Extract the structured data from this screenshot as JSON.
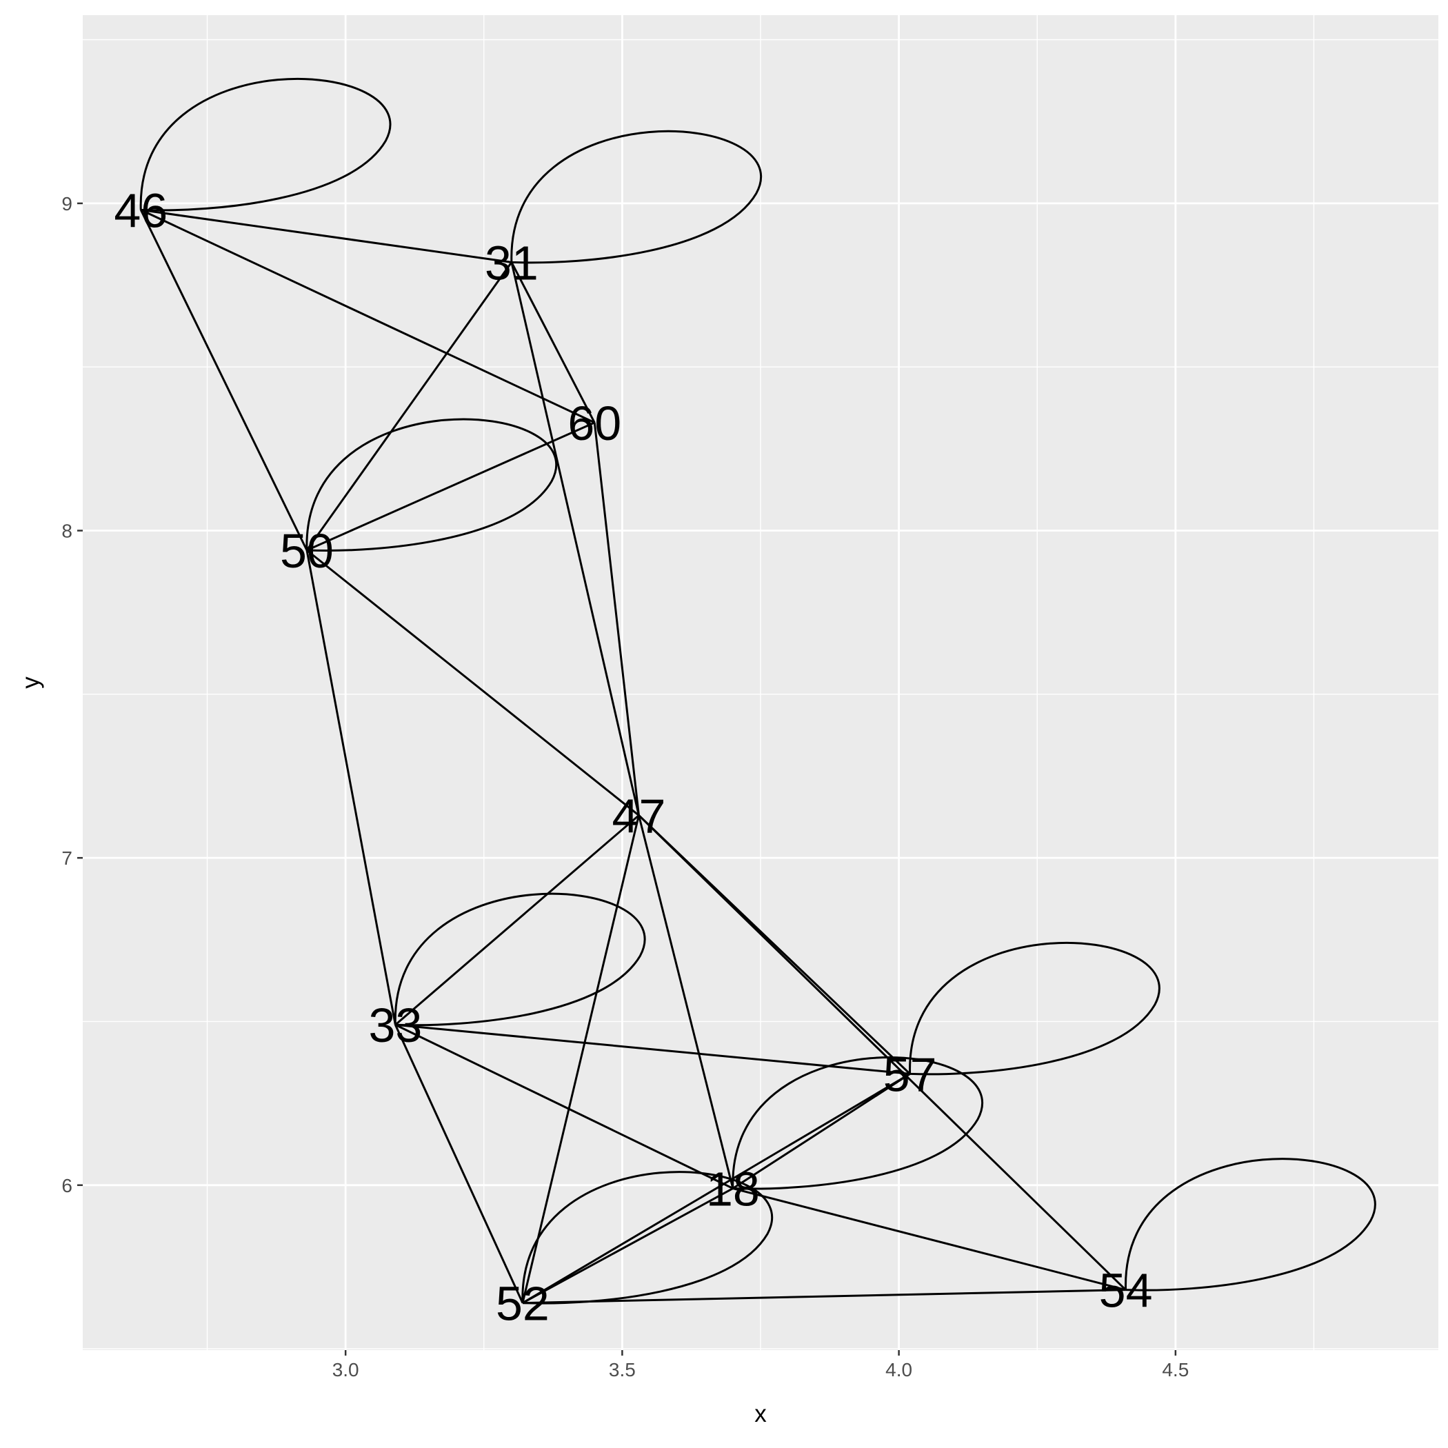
{
  "chart_data": {
    "type": "scatter",
    "subtype": "network-graph",
    "title": "",
    "xlabel": "x",
    "ylabel": "y",
    "xlim": [
      2.525,
      4.975
    ],
    "ylim": [
      5.496,
      9.575
    ],
    "grid": true,
    "x_ticks": [
      3.0,
      3.5,
      4.0,
      4.5
    ],
    "x_tick_labels": [
      "3.0",
      "3.5",
      "4.0",
      "4.5"
    ],
    "y_ticks": [
      6,
      7,
      8,
      9
    ],
    "y_tick_labels": [
      "6",
      "7",
      "8",
      "9"
    ],
    "nodes": [
      {
        "id": "46",
        "x": 2.63,
        "y": 8.98
      },
      {
        "id": "31",
        "x": 3.3,
        "y": 8.82
      },
      {
        "id": "60",
        "x": 3.45,
        "y": 8.33
      },
      {
        "id": "50",
        "x": 2.93,
        "y": 7.94
      },
      {
        "id": "47",
        "x": 3.53,
        "y": 7.13
      },
      {
        "id": "33",
        "x": 3.09,
        "y": 6.49
      },
      {
        "id": "57",
        "x": 4.02,
        "y": 6.34
      },
      {
        "id": "18",
        "x": 3.7,
        "y": 5.99
      },
      {
        "id": "52",
        "x": 3.32,
        "y": 5.64
      },
      {
        "id": "54",
        "x": 4.41,
        "y": 5.68
      }
    ],
    "edges": [
      [
        "46",
        "31"
      ],
      [
        "46",
        "60"
      ],
      [
        "46",
        "50"
      ],
      [
        "31",
        "50"
      ],
      [
        "31",
        "60"
      ],
      [
        "31",
        "47"
      ],
      [
        "60",
        "50"
      ],
      [
        "60",
        "47"
      ],
      [
        "50",
        "47"
      ],
      [
        "50",
        "33"
      ],
      [
        "47",
        "33"
      ],
      [
        "47",
        "18"
      ],
      [
        "47",
        "52"
      ],
      [
        "47",
        "57"
      ],
      [
        "47",
        "54"
      ],
      [
        "33",
        "57"
      ],
      [
        "33",
        "18"
      ],
      [
        "33",
        "52"
      ],
      [
        "57",
        "18"
      ],
      [
        "57",
        "52"
      ],
      [
        "18",
        "52"
      ],
      [
        "18",
        "54"
      ],
      [
        "52",
        "54"
      ]
    ],
    "self_loops": [
      "46",
      "31",
      "50",
      "33",
      "57",
      "18",
      "52",
      "54"
    ]
  }
}
